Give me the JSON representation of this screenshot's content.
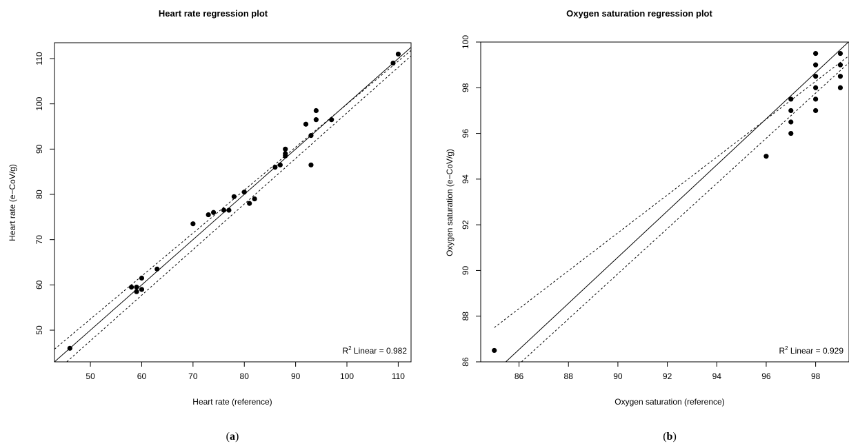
{
  "chart_data": [
    {
      "type": "scatter",
      "title": "Heart rate regression plot",
      "xlabel": "Heart rate (reference)",
      "ylabel": "Heart rate (e−CoV/g)",
      "panel_label": "(a)",
      "panel_letter": "a",
      "r2_prefix": "R",
      "r2_suffix": " Linear = 0.982",
      "xlim": [
        43,
        112.5
      ],
      "ylim": [
        43,
        113.5
      ],
      "xticks": [
        50,
        60,
        70,
        80,
        90,
        100,
        110
      ],
      "yticks": [
        50,
        60,
        70,
        80,
        90,
        100,
        110
      ],
      "grid": false,
      "fit": {
        "slope": 1.0,
        "intercept": 0.0
      },
      "ci": {
        "upper_start": [
          43,
          45.8
        ],
        "upper_end": [
          112.5,
          111.8
        ],
        "lower_start": [
          43,
          40.6
        ],
        "lower_end": [
          112.5,
          110.6
        ]
      },
      "points": [
        {
          "x": 46,
          "y": 46
        },
        {
          "x": 58,
          "y": 59.5
        },
        {
          "x": 59,
          "y": 59.5
        },
        {
          "x": 59,
          "y": 58.5
        },
        {
          "x": 60,
          "y": 61.5
        },
        {
          "x": 60,
          "y": 59
        },
        {
          "x": 63,
          "y": 63.5
        },
        {
          "x": 70,
          "y": 73.5
        },
        {
          "x": 73,
          "y": 75.5
        },
        {
          "x": 74,
          "y": 76
        },
        {
          "x": 76,
          "y": 76.5
        },
        {
          "x": 77,
          "y": 76.5
        },
        {
          "x": 78,
          "y": 79.5
        },
        {
          "x": 80,
          "y": 80.5
        },
        {
          "x": 81,
          "y": 78
        },
        {
          "x": 82,
          "y": 79
        },
        {
          "x": 86,
          "y": 86
        },
        {
          "x": 87,
          "y": 86.5
        },
        {
          "x": 88,
          "y": 90
        },
        {
          "x": 88,
          "y": 89
        },
        {
          "x": 88,
          "y": 88.5
        },
        {
          "x": 92,
          "y": 95.5
        },
        {
          "x": 93,
          "y": 93
        },
        {
          "x": 93,
          "y": 86.5
        },
        {
          "x": 94,
          "y": 98.5
        },
        {
          "x": 94,
          "y": 96.5
        },
        {
          "x": 97,
          "y": 96.5
        },
        {
          "x": 109,
          "y": 109
        },
        {
          "x": 110,
          "y": 111
        }
      ]
    },
    {
      "type": "scatter",
      "title": "Oxygen saturation regression plot",
      "xlabel": "Oxygen saturation (reference)",
      "ylabel": "Oxygen saturation (e−CoV/g)",
      "panel_label": "(b)",
      "panel_letter": "b",
      "r2_prefix": "R",
      "r2_suffix": " Linear = 0.929",
      "xlim": [
        84.45,
        99.35
      ],
      "ylim": [
        86,
        100
      ],
      "xticks": [
        86,
        88,
        90,
        92,
        94,
        96,
        98
      ],
      "yticks": [
        86,
        88,
        90,
        92,
        94,
        96,
        98,
        100
      ],
      "grid": false,
      "fit": {
        "slope": 1.01,
        "intercept": -0.32
      },
      "ci": {
        "upper_start": [
          85,
          87.5
        ],
        "upper_end": [
          99.35,
          99.4
        ],
        "lower_start": [
          86.1,
          86
        ],
        "lower_end": [
          99.35,
          99.1
        ]
      },
      "points": [
        {
          "x": 85,
          "y": 86.5
        },
        {
          "x": 96,
          "y": 95
        },
        {
          "x": 97,
          "y": 97.5
        },
        {
          "x": 97,
          "y": 97
        },
        {
          "x": 97,
          "y": 96.5
        },
        {
          "x": 97,
          "y": 96
        },
        {
          "x": 98,
          "y": 99.5
        },
        {
          "x": 98,
          "y": 99
        },
        {
          "x": 98,
          "y": 98.5
        },
        {
          "x": 98,
          "y": 98
        },
        {
          "x": 98,
          "y": 97.5
        },
        {
          "x": 98,
          "y": 97
        },
        {
          "x": 99,
          "y": 99.5
        },
        {
          "x": 99,
          "y": 99
        },
        {
          "x": 99,
          "y": 98.5
        },
        {
          "x": 99,
          "y": 98
        }
      ]
    }
  ]
}
